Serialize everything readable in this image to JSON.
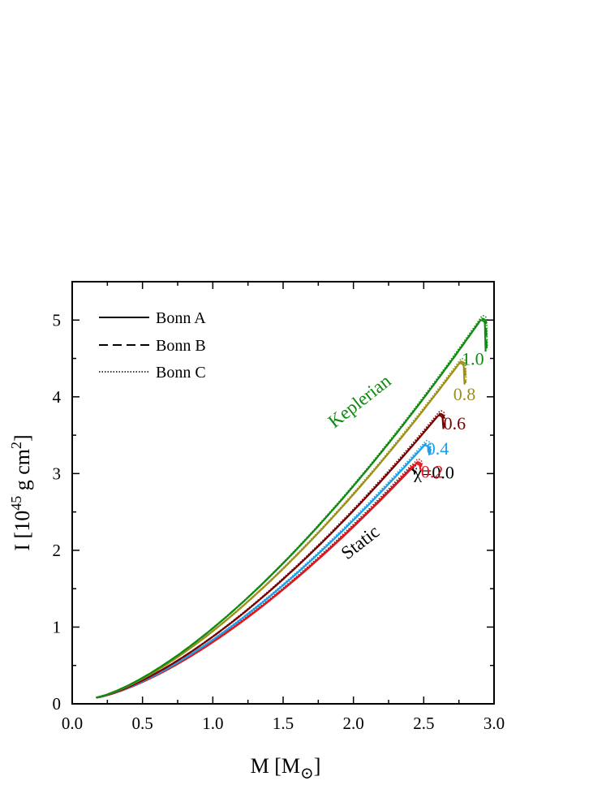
{
  "chart_data": {
    "type": "line",
    "xlabel": "M [M⊙]",
    "ylabel": "I [10^45 g cm^2]",
    "xlim": [
      0.0,
      3.0
    ],
    "ylim": [
      0,
      5.5
    ],
    "x_ticks": [
      "0.0",
      "0.5",
      "1.0",
      "1.5",
      "2.0",
      "2.5",
      "3.0"
    ],
    "y_ticks": [
      "0",
      "1",
      "2",
      "3",
      "4",
      "5"
    ],
    "grid": false,
    "legend_position": "top-left",
    "legend": [
      {
        "label": "Bonn A",
        "style": "solid"
      },
      {
        "label": "Bonn B",
        "style": "dashed"
      },
      {
        "label": "Bonn C",
        "style": "dotted"
      }
    ],
    "annotations": {
      "keplerian": "Keplerian",
      "static": "Static",
      "chi_prefix": "χ=0.0"
    },
    "series": [
      {
        "chi": "0.0",
        "label": "χ=0.0",
        "color": "#000000",
        "max_x": 2.4,
        "max_y": 3.05,
        "turn": 0.0
      },
      {
        "chi": "0.2",
        "label": "0.2",
        "color": "#e8141e",
        "max_x": 2.44,
        "max_y": 3.12,
        "turn": 0.03
      },
      {
        "chi": "0.4",
        "label": "0.4",
        "color": "#1ea0e6",
        "max_x": 2.5,
        "max_y": 3.36,
        "turn": 0.07
      },
      {
        "chi": "0.6",
        "label": "0.6",
        "color": "#7a0000",
        "max_x": 2.6,
        "max_y": 3.75,
        "turn": 0.12
      },
      {
        "chi": "0.8",
        "label": "0.8",
        "color": "#9c9018",
        "max_x": 2.75,
        "max_y": 4.43,
        "turn": 0.22
      },
      {
        "chi": "1.0",
        "label": "1.0",
        "color": "#118a11",
        "max_x": 2.9,
        "max_y": 4.99,
        "turn": 0.35
      }
    ]
  }
}
